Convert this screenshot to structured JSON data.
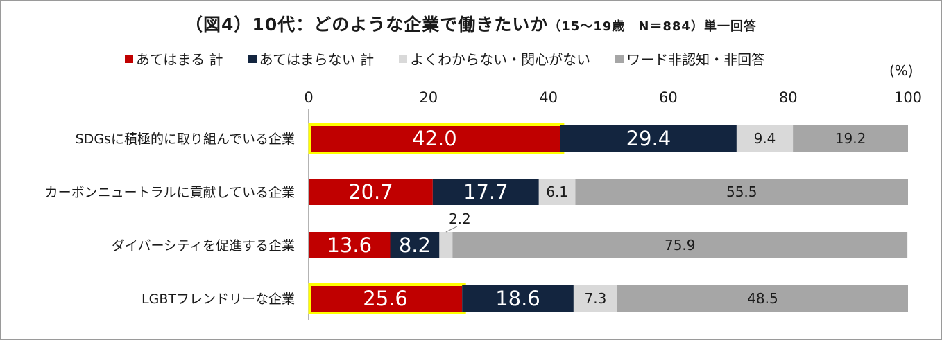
{
  "title": {
    "main": "（図4）10代：どのような企業で働きたいか",
    "sub": "（15～19歳　N＝884）単一回答"
  },
  "unit_label": "(%)",
  "colors": {
    "applies": "#c00000",
    "not_applies": "#13253f",
    "unknown": "#d9d9d9",
    "not_aware": "#a6a6a6",
    "highlight": "#ffff00"
  },
  "chart_data": {
    "type": "bar",
    "orientation": "horizontal",
    "stacked": true,
    "xlim": [
      0,
      100
    ],
    "xticks": [
      0,
      20,
      40,
      60,
      80,
      100
    ],
    "categories": [
      "SDGsに積極的に取り組んでいる企業",
      "カーボンニュートラルに貢献している企業",
      "ダイバーシティを促進する企業",
      "LGBTフレンドリーな企業"
    ],
    "series": [
      {
        "name": "あてはまる 計",
        "values": [
          42.0,
          20.7,
          13.6,
          25.6
        ],
        "color": "#c00000"
      },
      {
        "name": "あてはまらない 計",
        "values": [
          29.4,
          17.7,
          8.2,
          18.6
        ],
        "color": "#13253f"
      },
      {
        "name": "よくわからない・関心がない",
        "values": [
          9.4,
          6.1,
          2.2,
          7.3
        ],
        "color": "#d9d9d9"
      },
      {
        "name": "ワード非認知・非回答",
        "values": [
          19.2,
          55.5,
          75.9,
          48.5
        ],
        "color": "#a6a6a6"
      }
    ],
    "highlighted": [
      [
        0,
        0
      ],
      [
        3,
        0
      ]
    ],
    "legend_position": "top",
    "grid": false
  }
}
